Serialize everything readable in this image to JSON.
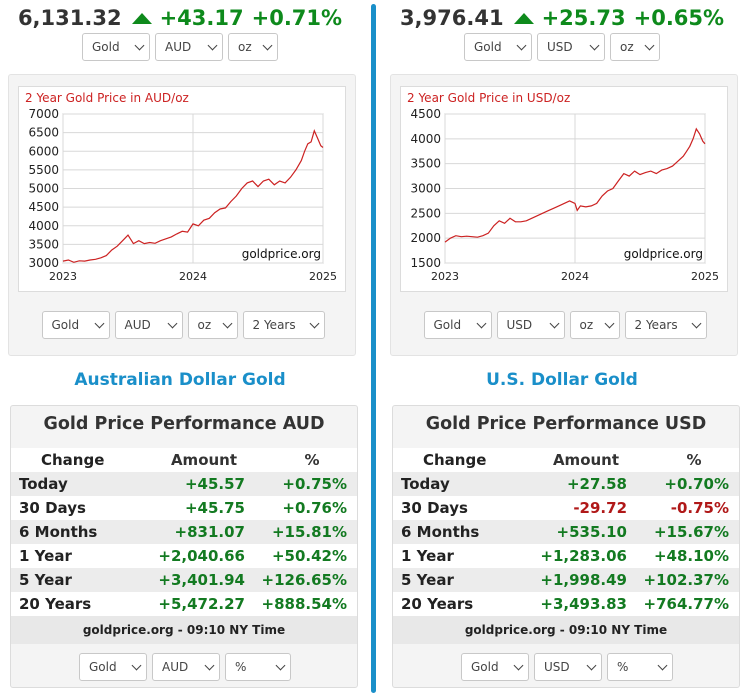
{
  "panels": [
    {
      "id": "aud",
      "price": "6,131.32",
      "change": "+43.17",
      "change_pct": "+0.71%",
      "top_selects": {
        "metal": "Gold",
        "currency": "AUD",
        "unit": "oz"
      },
      "chart_selects": {
        "metal": "Gold",
        "currency": "AUD",
        "unit": "oz",
        "range": "2 Years"
      },
      "chart_data": {
        "type": "line",
        "title": "2 Year Gold Price in AUD/oz",
        "watermark": "goldprice.org",
        "x_ticks": [
          "2023",
          "2024",
          "2025"
        ],
        "y_ticks": [
          3000,
          3500,
          4000,
          4500,
          5000,
          5500,
          6000,
          6500,
          7000
        ],
        "ylim": [
          3000,
          7000
        ],
        "xlim": [
          0,
          24
        ],
        "color": "#cc2222",
        "x": [
          0,
          0.5,
          1,
          1.5,
          2,
          2.5,
          3,
          3.5,
          4,
          4.5,
          5,
          5.5,
          6,
          6.5,
          7,
          7.5,
          8,
          8.5,
          9,
          9.5,
          10,
          10.5,
          11,
          11.5,
          12,
          12.5,
          13,
          13.5,
          14,
          14.5,
          15,
          15.5,
          16,
          16.5,
          17,
          17.5,
          18,
          18.5,
          19,
          19.5,
          20,
          20.5,
          21,
          21.5,
          22,
          22.3,
          22.6,
          22.9,
          23.2,
          23.5,
          23.8,
          24
        ],
        "y": [
          3050,
          3080,
          3020,
          3060,
          3050,
          3080,
          3100,
          3140,
          3200,
          3350,
          3450,
          3600,
          3750,
          3520,
          3600,
          3520,
          3550,
          3530,
          3600,
          3650,
          3700,
          3780,
          3850,
          3830,
          4050,
          4000,
          4150,
          4200,
          4350,
          4450,
          4480,
          4650,
          4800,
          5000,
          5150,
          5200,
          5050,
          5200,
          5250,
          5100,
          5200,
          5150,
          5300,
          5500,
          5750,
          6000,
          6200,
          6250,
          6550,
          6350,
          6150,
          6100
        ]
      },
      "section_title": "Australian Dollar Gold",
      "performance": {
        "title": "Gold Price Performance AUD",
        "headers": [
          "Change",
          "Amount",
          "%"
        ],
        "rows": [
          {
            "label": "Today",
            "amount": "+45.57",
            "pct": "+0.75%",
            "sign": "pos"
          },
          {
            "label": "30 Days",
            "amount": "+45.75",
            "pct": "+0.76%",
            "sign": "pos"
          },
          {
            "label": "6 Months",
            "amount": "+831.07",
            "pct": "+15.81%",
            "sign": "pos"
          },
          {
            "label": "1 Year",
            "amount": "+2,040.66",
            "pct": "+50.42%",
            "sign": "pos"
          },
          {
            "label": "5 Year",
            "amount": "+3,401.94",
            "pct": "+126.65%",
            "sign": "pos"
          },
          {
            "label": "20 Years",
            "amount": "+5,472.27",
            "pct": "+888.54%",
            "sign": "pos"
          }
        ],
        "footer": "goldprice.org - 09:10 NY Time",
        "selects": {
          "metal": "Gold",
          "currency": "AUD",
          "unit": "%"
        }
      }
    },
    {
      "id": "usd",
      "price": "3,976.41",
      "change": "+25.73",
      "change_pct": "+0.65%",
      "top_selects": {
        "metal": "Gold",
        "currency": "USD",
        "unit": "oz"
      },
      "chart_selects": {
        "metal": "Gold",
        "currency": "USD",
        "unit": "oz",
        "range": "2 Years"
      },
      "chart_data": {
        "type": "line",
        "title": "2 Year Gold Price in USD/oz",
        "watermark": "goldprice.org",
        "x_ticks": [
          "2023",
          "2024",
          "2025"
        ],
        "y_ticks": [
          1500,
          2000,
          2500,
          3000,
          3500,
          4000,
          4500
        ],
        "ylim": [
          1500,
          4500
        ],
        "xlim": [
          0,
          24
        ],
        "color": "#cc2222",
        "x": [
          0,
          0.5,
          1,
          1.5,
          2,
          2.5,
          3,
          3.5,
          4,
          4.5,
          5,
          5.5,
          6,
          6.5,
          7,
          7.5,
          8,
          8.5,
          9,
          9.5,
          10,
          10.5,
          11,
          11.5,
          12,
          12.2,
          12.5,
          13,
          13.5,
          14,
          14.5,
          15,
          15.5,
          16,
          16.5,
          17,
          17.5,
          18,
          18.5,
          19,
          19.5,
          20,
          20.5,
          21,
          21.5,
          22,
          22.3,
          22.6,
          22.9,
          23.2,
          23.5,
          23.8,
          24
        ],
        "y": [
          1920,
          2000,
          2050,
          2030,
          2040,
          2030,
          2020,
          2050,
          2100,
          2250,
          2350,
          2300,
          2400,
          2330,
          2330,
          2350,
          2400,
          2450,
          2500,
          2550,
          2600,
          2650,
          2700,
          2750,
          2700,
          2560,
          2650,
          2630,
          2650,
          2700,
          2850,
          2950,
          3000,
          3150,
          3300,
          3250,
          3350,
          3280,
          3320,
          3350,
          3300,
          3370,
          3400,
          3450,
          3550,
          3650,
          3750,
          3850,
          4000,
          4200,
          4100,
          3950,
          3900
        ]
      },
      "section_title": "U.S. Dollar Gold",
      "performance": {
        "title": "Gold Price Performance USD",
        "headers": [
          "Change",
          "Amount",
          "%"
        ],
        "rows": [
          {
            "label": "Today",
            "amount": "+27.58",
            "pct": "+0.70%",
            "sign": "pos"
          },
          {
            "label": "30 Days",
            "amount": "-29.72",
            "pct": "-0.75%",
            "sign": "neg"
          },
          {
            "label": "6 Months",
            "amount": "+535.10",
            "pct": "+15.67%",
            "sign": "pos"
          },
          {
            "label": "1 Year",
            "amount": "+1,283.06",
            "pct": "+48.10%",
            "sign": "pos"
          },
          {
            "label": "5 Year",
            "amount": "+1,998.49",
            "pct": "+102.37%",
            "sign": "pos"
          },
          {
            "label": "20 Years",
            "amount": "+3,493.83",
            "pct": "+764.77%",
            "sign": "pos"
          }
        ],
        "footer": "goldprice.org - 09:10 NY Time",
        "selects": {
          "metal": "Gold",
          "currency": "USD",
          "unit": "%"
        }
      }
    }
  ]
}
